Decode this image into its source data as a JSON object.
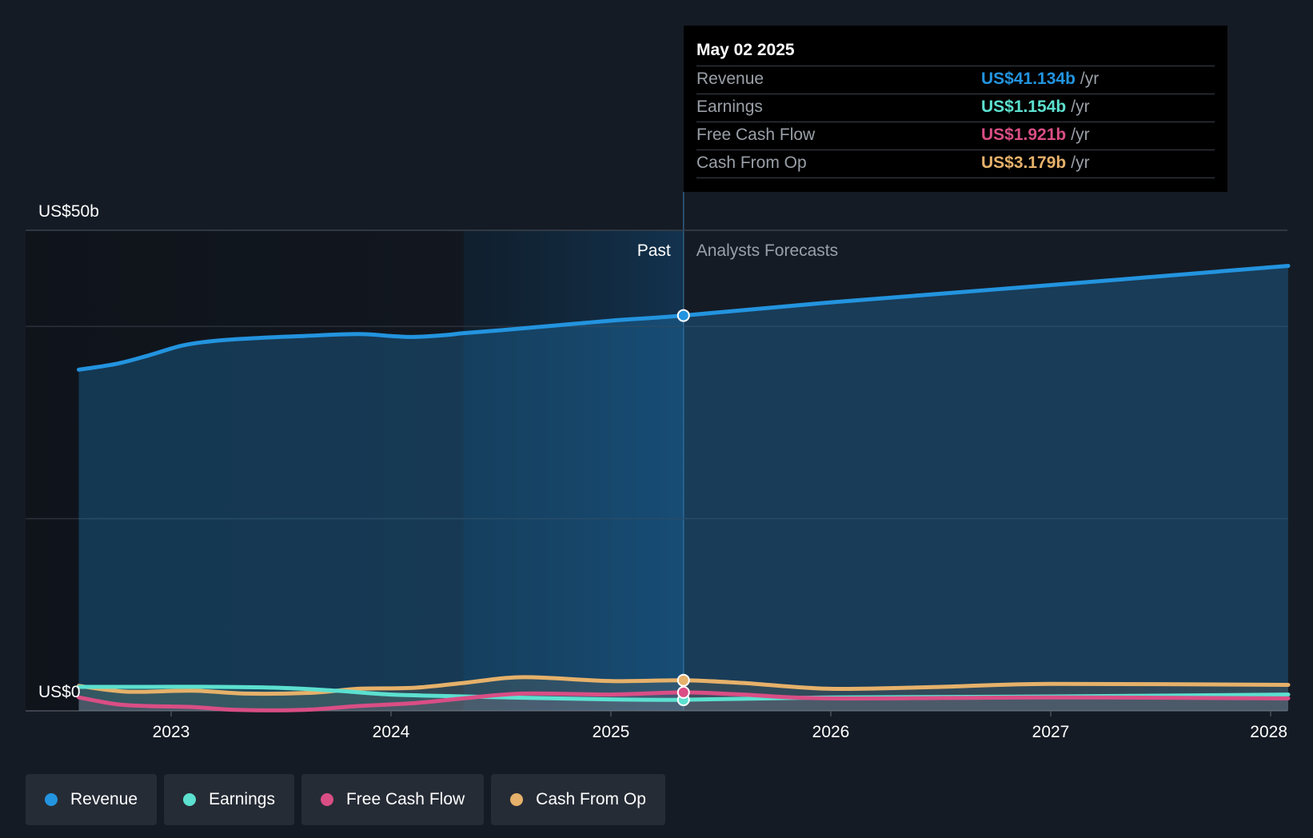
{
  "chart_data": {
    "type": "line",
    "y_axis": {
      "max_label": "US$50b",
      "min_label": "US$0",
      "ylim": [
        0,
        50
      ]
    },
    "x_axis": {
      "ticks": [
        "2023",
        "2024",
        "2025",
        "2026",
        "2027",
        "2028"
      ]
    },
    "region_labels": {
      "past": "Past",
      "forecast": "Analysts Forecasts"
    },
    "split_date": 2025.33,
    "highlight_start": 2024.33,
    "grid": true,
    "series": [
      {
        "name": "Revenue",
        "color": "#2394df",
        "points": [
          [
            2022.58,
            35.5
          ],
          [
            2022.75,
            36.1
          ],
          [
            2022.9,
            37.0
          ],
          [
            2023.05,
            38.0
          ],
          [
            2023.2,
            38.5
          ],
          [
            2023.4,
            38.8
          ],
          [
            2023.6,
            39.0
          ],
          [
            2023.85,
            39.2
          ],
          [
            2024.0,
            39.0
          ],
          [
            2024.1,
            38.9
          ],
          [
            2024.25,
            39.1
          ],
          [
            2024.33,
            39.3
          ],
          [
            2024.5,
            39.6
          ],
          [
            2024.75,
            40.1
          ],
          [
            2025.0,
            40.6
          ],
          [
            2025.33,
            41.134
          ],
          [
            2026.0,
            42.5
          ],
          [
            2027.0,
            44.3
          ],
          [
            2028.08,
            46.3
          ]
        ]
      },
      {
        "name": "Earnings",
        "color": "#5ce0cf",
        "points": [
          [
            2022.58,
            2.5
          ],
          [
            2022.9,
            2.5
          ],
          [
            2023.2,
            2.5
          ],
          [
            2023.5,
            2.4
          ],
          [
            2023.75,
            2.1
          ],
          [
            2024.0,
            1.7
          ],
          [
            2024.33,
            1.5
          ],
          [
            2024.75,
            1.3
          ],
          [
            2025.0,
            1.2
          ],
          [
            2025.33,
            1.154
          ],
          [
            2026.0,
            1.4
          ],
          [
            2027.0,
            1.5
          ],
          [
            2028.08,
            1.7
          ]
        ]
      },
      {
        "name": "Free Cash Flow",
        "color": "#d94e85",
        "points": [
          [
            2022.58,
            1.4
          ],
          [
            2022.75,
            0.7
          ],
          [
            2022.9,
            0.5
          ],
          [
            2023.1,
            0.4
          ],
          [
            2023.3,
            0.1
          ],
          [
            2023.6,
            0.1
          ],
          [
            2023.85,
            0.5
          ],
          [
            2024.1,
            0.8
          ],
          [
            2024.33,
            1.3
          ],
          [
            2024.6,
            1.8
          ],
          [
            2025.0,
            1.7
          ],
          [
            2025.33,
            1.921
          ],
          [
            2025.6,
            1.7
          ],
          [
            2026.0,
            1.3
          ],
          [
            2027.0,
            1.4
          ],
          [
            2028.08,
            1.3
          ]
        ]
      },
      {
        "name": "Cash From Op",
        "color": "#e6b16a",
        "points": [
          [
            2022.58,
            2.6
          ],
          [
            2022.8,
            2.0
          ],
          [
            2023.1,
            2.1
          ],
          [
            2023.35,
            1.8
          ],
          [
            2023.65,
            1.9
          ],
          [
            2023.85,
            2.3
          ],
          [
            2024.1,
            2.4
          ],
          [
            2024.33,
            2.9
          ],
          [
            2024.6,
            3.5
          ],
          [
            2025.0,
            3.1
          ],
          [
            2025.33,
            3.179
          ],
          [
            2025.6,
            2.9
          ],
          [
            2026.0,
            2.3
          ],
          [
            2026.5,
            2.5
          ],
          [
            2027.0,
            2.8
          ],
          [
            2028.08,
            2.7
          ]
        ]
      }
    ]
  },
  "tooltip": {
    "date": "May 02 2025",
    "rows": [
      {
        "label": "Revenue",
        "value": "US$41.134b",
        "unit": "/yr",
        "color": "#2394df"
      },
      {
        "label": "Earnings",
        "value": "US$1.154b",
        "unit": "/yr",
        "color": "#5ce0cf"
      },
      {
        "label": "Free Cash Flow",
        "value": "US$1.921b",
        "unit": "/yr",
        "color": "#d94e85"
      },
      {
        "label": "Cash From Op",
        "value": "US$3.179b",
        "unit": "/yr",
        "color": "#e6b16a"
      }
    ]
  },
  "legend": [
    {
      "label": "Revenue",
      "color": "#2394df"
    },
    {
      "label": "Earnings",
      "color": "#5ce0cf"
    },
    {
      "label": "Free Cash Flow",
      "color": "#d94e85"
    },
    {
      "label": "Cash From Op",
      "color": "#e6b16a"
    }
  ]
}
